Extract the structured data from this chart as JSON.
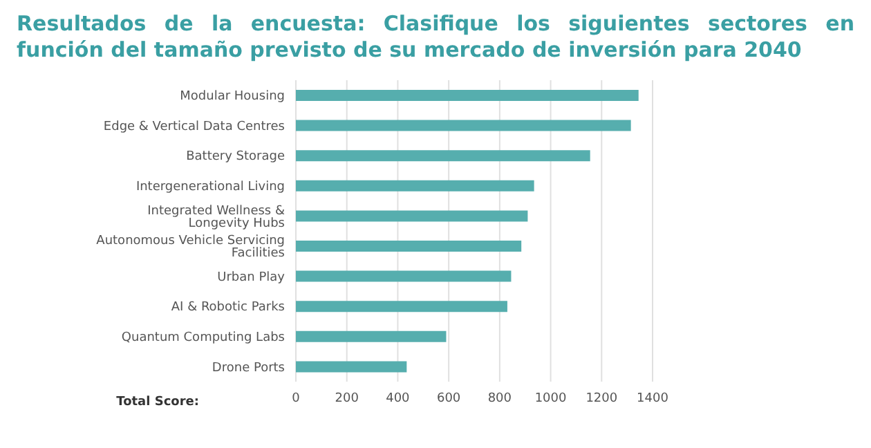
{
  "chart_data": {
    "type": "bar",
    "orientation": "horizontal",
    "title": "Resultados de la encuesta: Clasifique los siguientes sectores en función del tamaño previsto de su mercado de inversión para 2040",
    "xlabel": "Total Score:",
    "categories": [
      "Modular Housing",
      "Edge & Vertical Data Centres",
      "Battery Storage",
      "Intergenerational Living",
      "Integrated Wellness & Longevity Hubs",
      "Autonomous Vehicle Servicing Facilities",
      "Urban Play",
      "AI & Robotic Parks",
      "Quantum Computing Labs",
      "Drone Ports"
    ],
    "values": [
      1345,
      1315,
      1155,
      935,
      910,
      885,
      845,
      830,
      590,
      435
    ],
    "color": "#56aeae",
    "xlim": [
      0,
      1400
    ],
    "xticks": [
      0,
      200,
      400,
      600,
      800,
      1000,
      1200,
      1400
    ],
    "grid": "x",
    "legend": false
  }
}
